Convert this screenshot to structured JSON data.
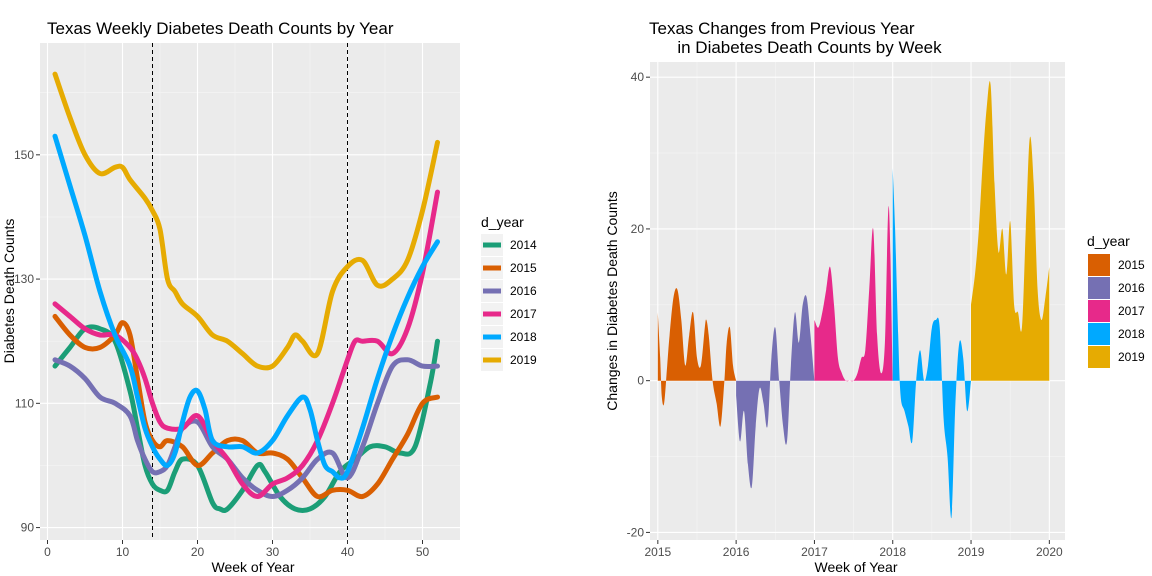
{
  "chart_data": [
    {
      "type": "line",
      "title": "Texas Weekly Diabetes Death Counts by Year",
      "xlabel": "Week of Year",
      "ylabel": "Diabetes Death Counts",
      "xlim": [
        -1,
        55
      ],
      "ylim": [
        88,
        168
      ],
      "xticks": [
        0,
        10,
        20,
        30,
        40,
        50
      ],
      "yticks": [
        90,
        110,
        130,
        150
      ],
      "vlines": [
        14,
        40
      ],
      "grid": true,
      "legend": {
        "title": "d_year",
        "position": "right"
      },
      "series": [
        {
          "name": "2014",
          "color": "#1b9e77",
          "x": [
            1,
            3,
            5,
            7,
            9,
            11,
            12,
            13,
            14,
            15,
            16,
            17,
            18,
            20,
            22,
            23,
            24,
            26,
            28,
            29,
            31,
            33,
            35,
            37,
            39,
            41,
            43,
            45,
            47,
            49,
            51,
            52
          ],
          "y": [
            116,
            119,
            122,
            122,
            120,
            112,
            106,
            100,
            97,
            96,
            96,
            99,
            101,
            100,
            94,
            93,
            93,
            96,
            100,
            99,
            95,
            93,
            93,
            95,
            99,
            101,
            103,
            103,
            102,
            103,
            113,
            120
          ]
        },
        {
          "name": "2015",
          "color": "#d95f02",
          "x": [
            1,
            3,
            5,
            7,
            9,
            10,
            11,
            12,
            13,
            14,
            15,
            16,
            18,
            20,
            22,
            24,
            26,
            28,
            30,
            32,
            34,
            36,
            38,
            40,
            42,
            44,
            46,
            48,
            50,
            52
          ],
          "y": [
            124,
            121,
            119,
            119,
            121,
            123,
            121,
            114,
            107,
            104,
            103,
            104,
            103,
            100,
            102,
            104,
            104,
            102,
            102,
            101,
            98,
            95,
            96,
            96,
            95,
            97,
            101,
            105,
            110,
            111
          ]
        },
        {
          "name": "2016",
          "color": "#7570b3",
          "x": [
            1,
            3,
            5,
            7,
            9,
            11,
            12,
            13,
            14,
            15,
            16,
            17,
            18,
            20,
            22,
            24,
            26,
            28,
            30,
            32,
            34,
            36,
            38,
            40,
            42,
            44,
            46,
            48,
            50,
            52
          ],
          "y": [
            117,
            116,
            114,
            111,
            110,
            108,
            104,
            101,
            99,
            99,
            100,
            103,
            106,
            107,
            103,
            101,
            98,
            96,
            95,
            96,
            98,
            101,
            102,
            98,
            103,
            110,
            116,
            117,
            116,
            116
          ]
        },
        {
          "name": "2017",
          "color": "#e7298a",
          "x": [
            1,
            3,
            5,
            7,
            9,
            11,
            12,
            13,
            14,
            15,
            16,
            18,
            20,
            22,
            24,
            26,
            28,
            30,
            32,
            34,
            36,
            38,
            40,
            41,
            42,
            44,
            46,
            48,
            50,
            52
          ],
          "y": [
            126,
            124,
            122,
            121,
            121,
            119,
            117,
            114,
            110,
            107,
            106,
            106,
            108,
            104,
            101,
            97,
            95,
            97,
            98,
            100,
            104,
            110,
            117,
            120,
            120,
            120,
            118,
            122,
            131,
            144
          ]
        },
        {
          "name": "2018",
          "color": "#00a9ff",
          "x": [
            1,
            3,
            5,
            7,
            9,
            11,
            12,
            13,
            14,
            15,
            16,
            17,
            18,
            19,
            20,
            21,
            22,
            24,
            26,
            28,
            30,
            32,
            34,
            35,
            36,
            37,
            38,
            39,
            40,
            42,
            44,
            46,
            48,
            50,
            52
          ],
          "y": [
            153,
            145,
            137,
            128,
            121,
            116,
            111,
            106,
            103,
            101,
            100,
            102,
            107,
            111,
            112,
            109,
            104,
            103,
            103,
            102,
            104,
            108,
            111,
            109,
            104,
            100,
            99,
            98,
            99,
            106,
            114,
            121,
            127,
            132,
            136
          ]
        },
        {
          "name": "2019",
          "color": "#e6ab02",
          "x": [
            1,
            3,
            5,
            7,
            9,
            10,
            11,
            13,
            14,
            15,
            16,
            17,
            18,
            20,
            22,
            24,
            26,
            28,
            30,
            32,
            33,
            34,
            36,
            38,
            40,
            42,
            44,
            46,
            48,
            50,
            52
          ],
          "y": [
            163,
            156,
            150,
            147,
            148,
            148,
            146,
            143,
            141,
            138,
            130,
            128,
            126,
            124,
            121,
            120,
            118,
            116,
            116,
            119,
            121,
            120,
            118,
            128,
            132,
            133,
            129,
            130,
            133,
            141,
            152
          ]
        }
      ]
    },
    {
      "type": "area",
      "title": "Texas Changes from Previous Year\n      in Diabetes Death Counts by Week",
      "xlabel": "Week of Year",
      "ylabel": "Changes in Diabetes Death Counts",
      "xlim": [
        2014.9,
        2020.2
      ],
      "ylim": [
        -21,
        42
      ],
      "xticks": [
        2015,
        2016,
        2017,
        2018,
        2019,
        2020
      ],
      "yticks": [
        -20,
        0,
        20,
        40
      ],
      "grid": true,
      "legend": {
        "title": "d_year",
        "position": "right"
      },
      "series": [
        {
          "name": "2015",
          "color": "#d95f02",
          "x": [
            2015.0,
            2015.03,
            2015.05,
            2015.08,
            2015.12,
            2015.15,
            2015.2,
            2015.25,
            2015.3,
            2015.35,
            2015.4,
            2015.45,
            2015.5,
            2015.55,
            2015.6,
            2015.62,
            2015.65,
            2015.7,
            2015.75,
            2015.8,
            2015.85,
            2015.88,
            2015.92,
            2015.96,
            2016.0
          ],
          "y": [
            9,
            3,
            -2,
            -3,
            2,
            6,
            11,
            12,
            8,
            2,
            6,
            9,
            3,
            2,
            7,
            8,
            6,
            0,
            -3,
            -6,
            0,
            5,
            7,
            2,
            0
          ]
        },
        {
          "name": "2016",
          "color": "#7570b3",
          "x": [
            2016.0,
            2016.05,
            2016.1,
            2016.15,
            2016.2,
            2016.25,
            2016.3,
            2016.35,
            2016.4,
            2016.45,
            2016.5,
            2016.55,
            2016.6,
            2016.65,
            2016.7,
            2016.75,
            2016.8,
            2016.85,
            2016.9,
            2016.95,
            2017.0
          ],
          "y": [
            -2,
            -8,
            -4,
            -11,
            -14,
            -6,
            -1,
            -3,
            -6,
            3,
            7,
            0,
            -6,
            -8,
            2,
            9,
            5,
            10,
            11,
            6,
            0
          ]
        },
        {
          "name": "2017",
          "color": "#e7298a",
          "x": [
            2017.0,
            2017.05,
            2017.1,
            2017.15,
            2017.2,
            2017.25,
            2017.3,
            2017.35,
            2017.4,
            2017.45,
            2017.5,
            2017.55,
            2017.6,
            2017.65,
            2017.7,
            2017.75,
            2017.8,
            2017.85,
            2017.9,
            2017.95,
            2018.0
          ],
          "y": [
            8,
            7,
            9,
            12,
            15,
            10,
            3,
            1,
            0,
            0,
            0,
            1,
            3,
            4,
            12,
            20,
            6,
            1,
            5,
            23,
            0
          ]
        },
        {
          "name": "2018",
          "color": "#00a9ff",
          "x": [
            2018.0,
            2018.03,
            2018.07,
            2018.1,
            2018.15,
            2018.2,
            2018.25,
            2018.3,
            2018.35,
            2018.4,
            2018.45,
            2018.5,
            2018.55,
            2018.6,
            2018.65,
            2018.7,
            2018.75,
            2018.8,
            2018.85,
            2018.9,
            2018.95,
            2019.0
          ],
          "y": [
            28,
            20,
            6,
            -2,
            -4,
            -6,
            -8,
            0,
            4,
            0,
            2,
            7,
            8,
            7,
            -5,
            -10,
            -18,
            -3,
            5,
            3,
            -4,
            0
          ]
        },
        {
          "name": "2019",
          "color": "#e6ab02",
          "x": [
            2019.0,
            2019.05,
            2019.1,
            2019.15,
            2019.2,
            2019.25,
            2019.3,
            2019.35,
            2019.4,
            2019.45,
            2019.5,
            2019.55,
            2019.6,
            2019.65,
            2019.7,
            2019.75,
            2019.8,
            2019.85,
            2019.9,
            2019.95,
            2020.0
          ],
          "y": [
            10,
            14,
            20,
            29,
            36,
            39,
            26,
            17,
            20,
            14,
            21,
            10,
            9,
            7,
            20,
            32,
            26,
            12,
            8,
            11,
            15
          ]
        }
      ]
    }
  ]
}
